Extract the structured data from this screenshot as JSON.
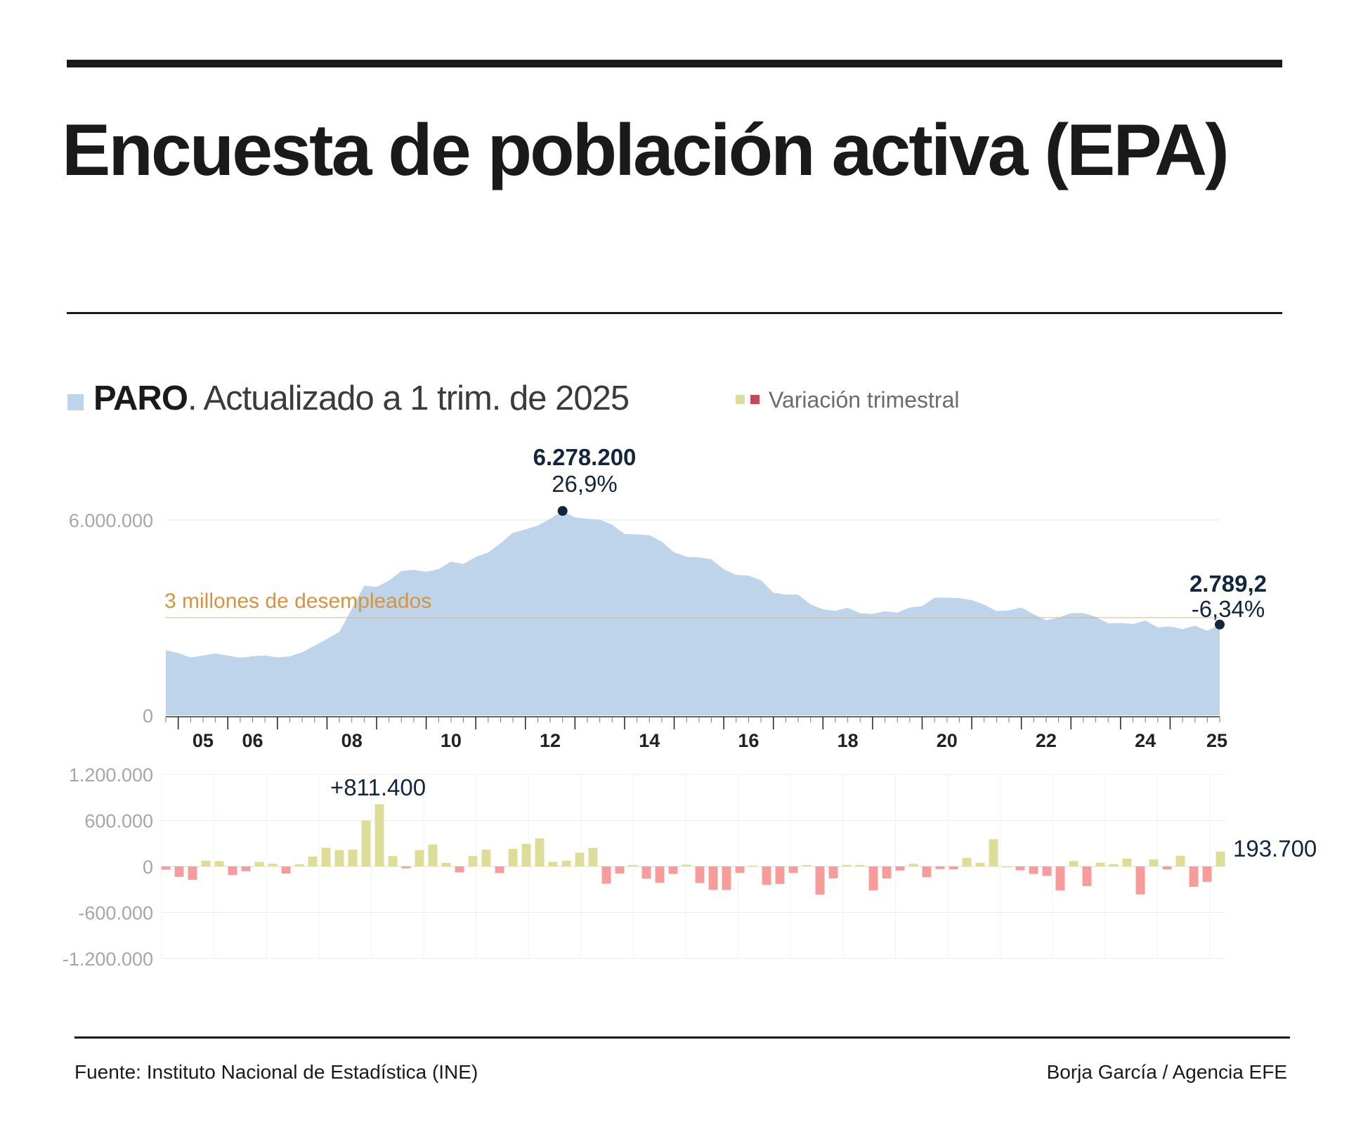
{
  "header": {
    "title": "Encuesta de población activa (EPA)"
  },
  "legend": {
    "series_bold": "PARO",
    "series_rest": ". Actualizado a 1 trim. de 2025",
    "variation_label": "Variación trimestral"
  },
  "annotations": {
    "peak_value": "6.278.200",
    "peak_rate": "26,9%",
    "last_value": "2.789,2",
    "last_rate": "-6,34%",
    "threshold_label": "3 millones de desempleados",
    "max_change_label": "+811.400",
    "last_change_label": "193.700"
  },
  "footer": {
    "source": "Fuente: Instituto Nacional de Estadística (INE)",
    "credit": "Borja García / Agencia EFE"
  },
  "colors": {
    "area": "#bdd4ea",
    "positive_bar": "#dedd98",
    "negative_bar": "#f89b9b",
    "legend_negative": "#c9475a",
    "threshold": "#d8933f",
    "marker": "#12263f",
    "axis_text": "#a6a6a6"
  },
  "chart_data": [
    {
      "type": "area",
      "series": [
        {
          "name": "PARO",
          "unit": "personas"
        }
      ],
      "x_start": "2004 T4",
      "x_end": "2025 T1",
      "x_tick_labels": [
        "05",
        "06",
        "08",
        "10",
        "12",
        "14",
        "16",
        "18",
        "20",
        "22",
        "24",
        "25"
      ],
      "y_tick_labels": [
        "0",
        "6.000.000"
      ],
      "ylim": [
        0,
        6000000
      ],
      "threshold": 3000000,
      "values": [
        1999900,
        1912100,
        1778200,
        1836900,
        1900000,
        1834400,
        1767800,
        1816300,
        1837800,
        1781400,
        1811200,
        1939000,
        2137400,
        2345400,
        2565900,
        3263700,
        3982400,
        3945200,
        4137500,
        4432600,
        4470400,
        4408700,
        4489400,
        4721200,
        4647600,
        4864800,
        4998800,
        5287300,
        5604900,
        5709300,
        5829600,
        6036200,
        6278200,
        6078100,
        6036400,
        6013000,
        5852600,
        5571000,
        5556500,
        5532000,
        5330100,
        5004800,
        4869300,
        4854300,
        4793300,
        4485600,
        4315100,
        4291900,
        4146300,
        3766700,
        3709500,
        3704500,
        3408400,
        3255300,
        3211400,
        3304300,
        3135900,
        3116100,
        3193200,
        3154700,
        3311900,
        3352400,
        3613400,
        3614300,
        3596800,
        3538500,
        3399500,
        3202100,
        3222800,
        3310600,
        3105000,
        2922900,
        2999100,
        3140000,
        3143200,
        3024000,
        2824800,
        2839400,
        2804200,
        2910300,
        2699600,
        2730400,
        2647200,
        2756600,
        2595500,
        2789200
      ],
      "annotations": [
        {
          "label": "6.278.200",
          "note": "26,9%"
        },
        {
          "label": "2.789,2",
          "note": "-6,34%"
        },
        {
          "label": "3 millones de desempleados"
        }
      ]
    },
    {
      "type": "bar",
      "series": [
        {
          "name": "Variación trimestral"
        }
      ],
      "ylim": [
        -1200000,
        1200000
      ],
      "y_tick_labels": [
        "1.200.000",
        "600.000",
        "0",
        "-600.000",
        "-1.200.000"
      ],
      "values": [
        -43200,
        -136200,
        -174800,
        74900,
        69300,
        -111000,
        -63100,
        58900,
        35400,
        -93900,
        28500,
        128500,
        243500,
        213000,
        220500,
        598100,
        811400,
        134100,
        -25400,
        213000,
        286700,
        45600,
        -77800,
        134700,
        219100,
        -87200,
        230200,
        294400,
        365900,
        60300,
        75400,
        180400,
        242100,
        -225200,
        -91600,
        18800,
        -159500,
        -214100,
        -98100,
        22900,
        -215900,
        -305300,
        -307200,
        -85800,
        11700,
        -239000,
        -228100,
        -85600,
        18800,
        -366600,
        -155100,
        20100,
        18800,
        -311600,
        -156400,
        -53200,
        34800,
        -141000,
        -34700,
        -37100,
        111400,
        45600,
        355000,
        0,
        -50400,
        -97900,
        -123700,
        -313500,
        69800,
        -255300,
        48200,
        29600,
        103200,
        -364400,
        91500,
        -37700,
        138900,
        -266000,
        -200300,
        193700
      ],
      "annotations": [
        {
          "label": "+811.400"
        },
        {
          "label": "193.700"
        }
      ]
    }
  ]
}
